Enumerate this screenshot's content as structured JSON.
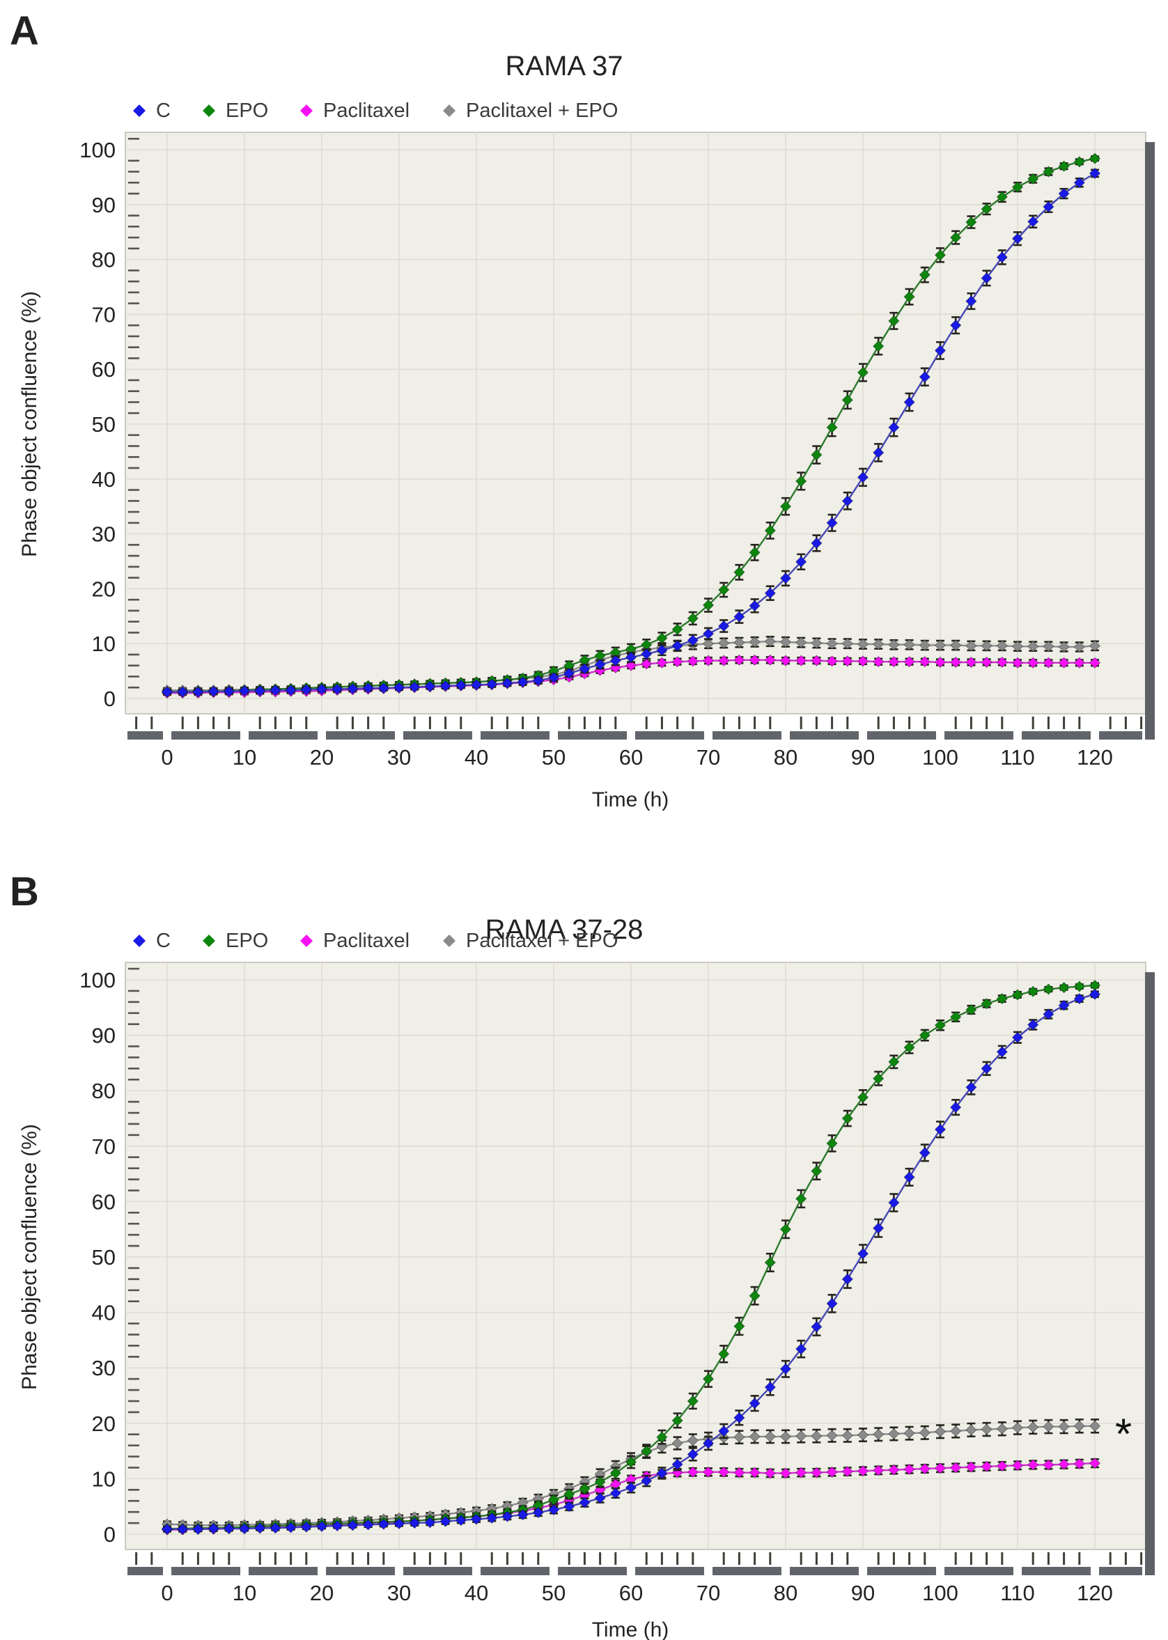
{
  "page": {
    "background": "#ffffff"
  },
  "colors": {
    "plot_bg": "#efeee7",
    "grid": "#dddcd2",
    "plot_border": "#bcbcb4",
    "shadow": "#5d6166",
    "axis_bar": "#61656b",
    "tick": "#3f3f38",
    "minor_tick_y": "#55554d",
    "error_bar": "#26261e",
    "text": "#222222",
    "label_text": "#3a3a3a"
  },
  "chart_data": [
    {
      "type": "line",
      "panel_label": "A",
      "title": "RAMA 37",
      "xlabel": "Time (h)",
      "ylabel": "Phase object confluence (%)",
      "xlim": [
        -5,
        126
      ],
      "ylim": [
        -3,
        103
      ],
      "x_ticks": [
        0,
        10,
        20,
        30,
        40,
        50,
        60,
        70,
        80,
        90,
        100,
        110,
        120
      ],
      "y_ticks": [
        0,
        10,
        20,
        30,
        40,
        50,
        60,
        70,
        80,
        90,
        100
      ],
      "x_minor_step": 2,
      "y_minor_step": 2,
      "grid": true,
      "legend_position": "top-left",
      "x_start": 0,
      "x_step": 2,
      "legend": [
        {
          "label": "C",
          "color": "#1a1ae6"
        },
        {
          "label": "EPO",
          "color": "#0d860d"
        },
        {
          "label": "Paclitaxel",
          "color": "#f511f5"
        },
        {
          "label": "Paclitaxel + EPO",
          "color": "#8a8a8a"
        }
      ],
      "series": [
        {
          "name": "Paclitaxel + EPO",
          "color": "#8a8a8a",
          "line_color": "#8c8c8c",
          "err_base": 0.4,
          "err_k": 0.28,
          "values": [
            1.5,
            1.5,
            1.5,
            1.5,
            1.6,
            1.6,
            1.7,
            1.7,
            1.8,
            1.9,
            2.0,
            2.1,
            2.2,
            2.3,
            2.4,
            2.5,
            2.6,
            2.7,
            2.8,
            2.9,
            3.0,
            3.2,
            3.4,
            3.6,
            3.9,
            4.3,
            5.0,
            6.0,
            7.0,
            7.8,
            8.4,
            8.9,
            9.3,
            9.6,
            9.8,
            10.0,
            10.1,
            10.2,
            10.3,
            10.4,
            10.3,
            10.2,
            10.1,
            10.0,
            10.0,
            9.9,
            9.9,
            9.8,
            9.8,
            9.7,
            9.7,
            9.7,
            9.6,
            9.6,
            9.6,
            9.5,
            9.5,
            9.5,
            9.4,
            9.4,
            9.6
          ]
        },
        {
          "name": "Paclitaxel",
          "color": "#f511f5",
          "line_color": "#cc33cc",
          "err_base": 0.35,
          "err_k": 0.22,
          "values": [
            1.0,
            1.0,
            1.0,
            1.1,
            1.1,
            1.1,
            1.2,
            1.2,
            1.3,
            1.3,
            1.4,
            1.5,
            1.6,
            1.7,
            1.8,
            1.9,
            2.0,
            2.1,
            2.2,
            2.3,
            2.4,
            2.5,
            2.7,
            2.9,
            3.1,
            3.4,
            3.9,
            4.5,
            5.1,
            5.6,
            6.0,
            6.3,
            6.5,
            6.7,
            6.8,
            6.9,
            6.9,
            7.0,
            7.0,
            7.0,
            6.9,
            6.9,
            6.9,
            6.8,
            6.8,
            6.8,
            6.7,
            6.7,
            6.7,
            6.7,
            6.6,
            6.6,
            6.6,
            6.6,
            6.6,
            6.5,
            6.5,
            6.5,
            6.5,
            6.5,
            6.5
          ]
        },
        {
          "name": "EPO",
          "color": "#0d860d",
          "line_color": "#2d7a2d",
          "err_base": 0.4,
          "err_k": 0.32,
          "values": [
            1.2,
            1.2,
            1.3,
            1.3,
            1.4,
            1.5,
            1.6,
            1.7,
            1.8,
            1.9,
            2.0,
            2.1,
            2.2,
            2.3,
            2.4,
            2.5,
            2.6,
            2.7,
            2.8,
            2.9,
            3.0,
            3.2,
            3.4,
            3.7,
            4.2,
            5.0,
            6.0,
            7.0,
            7.8,
            8.4,
            9.0,
            9.8,
            11.0,
            12.6,
            14.6,
            17.0,
            19.8,
            23.0,
            26.6,
            30.6,
            35.0,
            39.6,
            44.4,
            49.4,
            54.4,
            59.4,
            64.2,
            68.8,
            73.2,
            77.2,
            80.8,
            84.0,
            86.8,
            89.2,
            91.4,
            93.2,
            94.7,
            96.0,
            97.0,
            97.8,
            98.4
          ]
        },
        {
          "name": "C",
          "color": "#1a1ae6",
          "line_color": "#4646b4",
          "err_base": 0.4,
          "err_k": 0.32,
          "values": [
            1.2,
            1.2,
            1.2,
            1.3,
            1.3,
            1.4,
            1.4,
            1.5,
            1.5,
            1.6,
            1.7,
            1.7,
            1.8,
            1.9,
            1.9,
            2.0,
            2.1,
            2.2,
            2.3,
            2.4,
            2.5,
            2.6,
            2.8,
            3.0,
            3.3,
            3.8,
            4.6,
            5.4,
            6.2,
            6.9,
            7.5,
            8.1,
            8.8,
            9.6,
            10.6,
            11.8,
            13.2,
            14.9,
            16.9,
            19.2,
            21.9,
            24.9,
            28.3,
            32.0,
            36.0,
            40.3,
            44.8,
            49.4,
            54.0,
            58.6,
            63.4,
            68.0,
            72.4,
            76.6,
            80.4,
            83.8,
            86.9,
            89.6,
            92.0,
            94.0,
            95.7
          ]
        }
      ]
    },
    {
      "type": "line",
      "panel_label": "B",
      "title": "RAMA 37-28",
      "xlabel": "Time (h)",
      "ylabel": "Phase object confluence (%)",
      "xlim": [
        -5,
        126
      ],
      "ylim": [
        -3,
        103
      ],
      "x_ticks": [
        0,
        10,
        20,
        30,
        40,
        50,
        60,
        70,
        80,
        90,
        100,
        110,
        120
      ],
      "y_ticks": [
        0,
        10,
        20,
        30,
        40,
        50,
        60,
        70,
        80,
        90,
        100
      ],
      "x_minor_step": 2,
      "y_minor_step": 2,
      "grid": true,
      "legend_position": "top-left",
      "x_start": 0,
      "x_step": 2,
      "annotation": {
        "text": "*",
        "x": 123.7,
        "y": 19.4
      },
      "legend": [
        {
          "label": "C",
          "color": "#1a1ae6"
        },
        {
          "label": "EPO",
          "color": "#0d860d"
        },
        {
          "label": "Paclitaxel",
          "color": "#f511f5"
        },
        {
          "label": "Paclitaxel + EPO",
          "color": "#8a8a8a"
        }
      ],
      "series": [
        {
          "name": "Paclitaxel + EPO",
          "color": "#8a8a8a",
          "line_color": "#8c8c8c",
          "err_base": 0.5,
          "err_k": 0.3,
          "values": [
            1.8,
            1.7,
            1.6,
            1.6,
            1.6,
            1.7,
            1.7,
            1.8,
            1.9,
            2.0,
            2.1,
            2.2,
            2.4,
            2.5,
            2.7,
            2.9,
            3.1,
            3.3,
            3.6,
            3.9,
            4.2,
            4.6,
            5.1,
            5.7,
            6.4,
            7.2,
            8.2,
            9.4,
            10.8,
            12.2,
            13.6,
            14.8,
            15.8,
            16.4,
            16.9,
            17.2,
            17.4,
            17.5,
            17.6,
            17.6,
            17.6,
            17.7,
            17.7,
            17.8,
            17.8,
            17.9,
            18.0,
            18.1,
            18.2,
            18.3,
            18.5,
            18.6,
            18.8,
            18.9,
            19.0,
            19.2,
            19.3,
            19.4,
            19.4,
            19.5,
            19.5
          ]
        },
        {
          "name": "Paclitaxel",
          "color": "#f511f5",
          "line_color": "#cc33cc",
          "err_base": 0.35,
          "err_k": 0.22,
          "values": [
            0.8,
            0.8,
            0.9,
            0.9,
            1.0,
            1.0,
            1.1,
            1.2,
            1.3,
            1.4,
            1.5,
            1.6,
            1.7,
            1.9,
            2.0,
            2.2,
            2.4,
            2.6,
            2.8,
            3.0,
            3.2,
            3.5,
            3.8,
            4.2,
            4.7,
            5.3,
            6.1,
            7.0,
            8.0,
            9.0,
            9.9,
            10.5,
            10.9,
            11.1,
            11.2,
            11.2,
            11.2,
            11.1,
            11.1,
            11.0,
            11.0,
            11.1,
            11.1,
            11.2,
            11.3,
            11.4,
            11.5,
            11.6,
            11.7,
            11.8,
            11.9,
            12.0,
            12.1,
            12.2,
            12.3,
            12.4,
            12.5,
            12.5,
            12.6,
            12.7,
            12.8
          ]
        },
        {
          "name": "EPO",
          "color": "#0d860d",
          "line_color": "#2d7a2d",
          "err_base": 0.4,
          "err_k": 0.32,
          "values": [
            1.0,
            1.0,
            1.1,
            1.1,
            1.2,
            1.3,
            1.4,
            1.5,
            1.6,
            1.7,
            1.8,
            1.9,
            2.0,
            2.1,
            2.2,
            2.3,
            2.4,
            2.6,
            2.8,
            3.0,
            3.2,
            3.5,
            3.9,
            4.4,
            5.2,
            6.2,
            7.2,
            8.2,
            9.4,
            11.0,
            13.0,
            15.0,
            17.5,
            20.5,
            24.0,
            28.0,
            32.5,
            37.5,
            43.0,
            49.0,
            55.0,
            60.5,
            65.5,
            70.5,
            75.0,
            78.8,
            82.2,
            85.2,
            87.8,
            90.0,
            91.8,
            93.3,
            94.6,
            95.7,
            96.6,
            97.3,
            97.9,
            98.3,
            98.6,
            98.8,
            99.0
          ]
        },
        {
          "name": "C",
          "color": "#1a1ae6",
          "line_color": "#4646b4",
          "err_base": 0.4,
          "err_k": 0.32,
          "values": [
            0.9,
            0.9,
            0.9,
            1.0,
            1.0,
            1.0,
            1.1,
            1.1,
            1.2,
            1.3,
            1.4,
            1.5,
            1.6,
            1.7,
            1.8,
            1.9,
            2.0,
            2.1,
            2.3,
            2.5,
            2.7,
            2.9,
            3.2,
            3.5,
            3.9,
            4.4,
            5.0,
            5.7,
            6.5,
            7.4,
            8.4,
            9.6,
            11.0,
            12.6,
            14.4,
            16.4,
            18.6,
            21.0,
            23.6,
            26.5,
            29.8,
            33.4,
            37.4,
            41.6,
            46.0,
            50.6,
            55.2,
            59.8,
            64.4,
            68.8,
            73.0,
            77.0,
            80.6,
            84.0,
            87.0,
            89.6,
            91.9,
            93.8,
            95.4,
            96.6,
            97.4
          ]
        }
      ]
    }
  ]
}
